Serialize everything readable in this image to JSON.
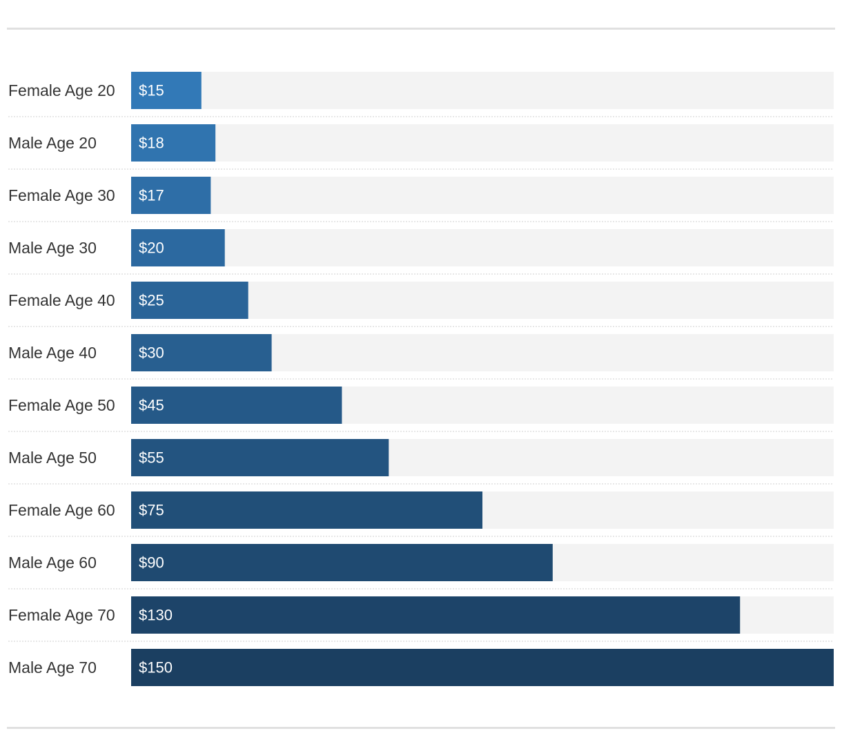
{
  "chart_data": {
    "type": "bar",
    "orientation": "horizontal",
    "title": "",
    "xlabel": "",
    "ylabel": "",
    "grid": false,
    "xlim": [
      0,
      150
    ],
    "value_prefix": "$",
    "categories": [
      "Female Age 20",
      "Male Age 20",
      "Female Age 30",
      "Male Age 30",
      "Female Age 40",
      "Male Age 40",
      "Female Age 50",
      "Male Age 50",
      "Female Age 60",
      "Male Age 60",
      "Female Age 70",
      "Male Age 70"
    ],
    "values": [
      15,
      18,
      17,
      20,
      25,
      30,
      45,
      55,
      75,
      90,
      130,
      150
    ],
    "value_labels": [
      "$15",
      "$18",
      "$17",
      "$20",
      "$25",
      "$30",
      "$45",
      "$55",
      "$75",
      "$90",
      "$130",
      "$150"
    ],
    "colors": {
      "bar_light": "#3279b7",
      "bar_dark": "#1b3f61",
      "track": "#f3f3f3",
      "label_text": "#333333",
      "value_text": "#ffffff"
    }
  }
}
